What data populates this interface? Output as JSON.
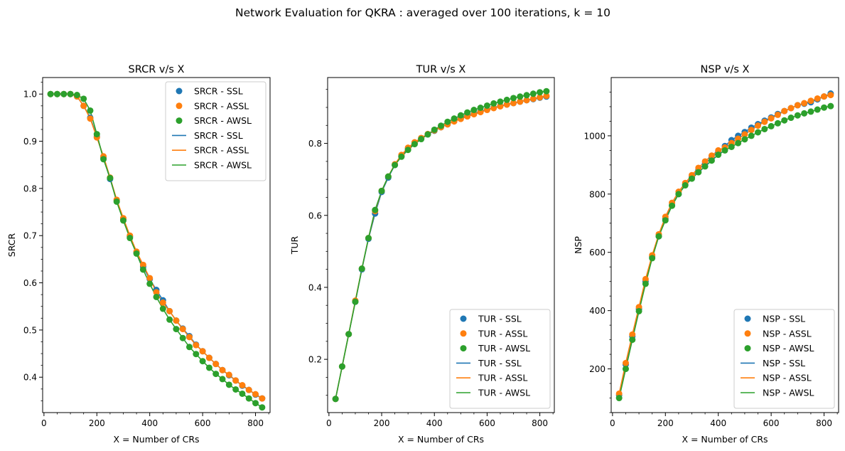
{
  "figure": {
    "suptitle": "Network Evaluation for QKRA : averaged over 100 iterations, k = 10"
  },
  "colors": {
    "SSL": "#1f77b4",
    "ASSL": "#ff7f0e",
    "AWSL": "#2ca02c"
  },
  "chart_data": [
    {
      "type": "scatter",
      "title": "SRCR v/s X",
      "xlabel": "X = Number of CRs",
      "ylabel": "SRCR",
      "xlim": [
        -5,
        855
      ],
      "ylim": [
        0.325,
        1.035
      ],
      "xticks": [
        0,
        200,
        400,
        600,
        800
      ],
      "yticks": [
        0.4,
        0.5,
        0.6,
        0.7,
        0.8,
        0.9,
        1.0
      ],
      "ytick_labels": [
        "0.4",
        "0.5",
        "0.6",
        "0.7",
        "0.8",
        "0.9",
        "1.0"
      ],
      "legend_position": "top-right",
      "legend": [
        "SRCR - SSL",
        "SRCR - ASSL",
        "SRCR - AWSL",
        "SRCR - SSL",
        "SRCR - ASSL",
        "SRCR - AWSL"
      ],
      "x": [
        25,
        50,
        75,
        100,
        125,
        150,
        175,
        200,
        225,
        250,
        275,
        300,
        325,
        350,
        375,
        400,
        425,
        450,
        475,
        500,
        525,
        550,
        575,
        600,
        625,
        650,
        675,
        700,
        725,
        750,
        775,
        800,
        825
      ],
      "series": [
        {
          "name": "SRCR - SSL",
          "key": "SSL",
          "values": [
            1.0,
            1.0,
            1.0,
            1.0,
            0.995,
            0.975,
            0.95,
            0.91,
            0.865,
            0.82,
            0.775,
            0.735,
            0.698,
            0.664,
            0.634,
            0.608,
            0.585,
            0.563,
            0.54,
            0.52,
            0.503,
            0.487,
            0.469,
            0.455,
            0.441,
            0.428,
            0.415,
            0.404,
            0.393,
            0.382,
            0.373,
            0.363,
            0.355
          ]
        },
        {
          "name": "SRCR - ASSL",
          "key": "ASSL",
          "values": [
            1.0,
            1.0,
            1.0,
            1.0,
            0.995,
            0.975,
            0.948,
            0.908,
            0.868,
            0.823,
            0.776,
            0.737,
            0.7,
            0.666,
            0.638,
            0.61,
            0.58,
            0.558,
            0.54,
            0.52,
            0.502,
            0.485,
            0.468,
            0.455,
            0.441,
            0.428,
            0.415,
            0.405,
            0.393,
            0.383,
            0.373,
            0.364,
            0.355
          ]
        },
        {
          "name": "SRCR - AWSL",
          "key": "AWSL",
          "values": [
            1.0,
            1.0,
            1.0,
            1.0,
            0.998,
            0.99,
            0.965,
            0.915,
            0.862,
            0.822,
            0.772,
            0.732,
            0.695,
            0.662,
            0.628,
            0.598,
            0.57,
            0.545,
            0.522,
            0.502,
            0.483,
            0.464,
            0.449,
            0.434,
            0.42,
            0.407,
            0.396,
            0.384,
            0.374,
            0.365,
            0.355,
            0.345,
            0.336
          ]
        }
      ]
    },
    {
      "type": "scatter",
      "title": "TUR v/s X",
      "xlabel": "X = Number of CRs",
      "ylabel": "TUR",
      "xlim": [
        -5,
        855
      ],
      "ylim": [
        0.052,
        0.983
      ],
      "xticks": [
        0,
        200,
        400,
        600,
        800
      ],
      "yticks": [
        0.2,
        0.4,
        0.6,
        0.8
      ],
      "ytick_labels": [
        "0.2",
        "0.4",
        "0.6",
        "0.8"
      ],
      "legend_position": "lower-right",
      "legend": [
        "TUR - SSL",
        "TUR - ASSL",
        "TUR - AWSL",
        "TUR - SSL",
        "TUR - ASSL",
        "TUR - AWSL"
      ],
      "x": [
        25,
        50,
        75,
        100,
        125,
        150,
        175,
        200,
        225,
        250,
        275,
        300,
        325,
        350,
        375,
        400,
        425,
        450,
        475,
        500,
        525,
        550,
        575,
        600,
        625,
        650,
        675,
        700,
        725,
        750,
        775,
        800,
        825
      ],
      "series": [
        {
          "name": "TUR - SSL",
          "key": "SSL",
          "values": [
            0.09,
            0.18,
            0.27,
            0.36,
            0.45,
            0.535,
            0.605,
            0.665,
            0.705,
            0.74,
            0.765,
            0.785,
            0.8,
            0.813,
            0.825,
            0.835,
            0.845,
            0.853,
            0.862,
            0.87,
            0.877,
            0.883,
            0.889,
            0.894,
            0.899,
            0.904,
            0.908,
            0.912,
            0.916,
            0.92,
            0.923,
            0.927,
            0.93
          ]
        },
        {
          "name": "TUR - ASSL",
          "key": "ASSL",
          "values": [
            0.09,
            0.18,
            0.27,
            0.363,
            0.452,
            0.537,
            0.612,
            0.668,
            0.708,
            0.742,
            0.768,
            0.788,
            0.803,
            0.815,
            0.826,
            0.836,
            0.845,
            0.853,
            0.861,
            0.868,
            0.875,
            0.881,
            0.887,
            0.893,
            0.898,
            0.903,
            0.908,
            0.912,
            0.916,
            0.92,
            0.924,
            0.928,
            0.932
          ]
        },
        {
          "name": "TUR - AWSL",
          "key": "AWSL",
          "values": [
            0.09,
            0.18,
            0.27,
            0.36,
            0.452,
            0.537,
            0.615,
            0.668,
            0.708,
            0.74,
            0.763,
            0.782,
            0.798,
            0.812,
            0.825,
            0.838,
            0.849,
            0.86,
            0.869,
            0.878,
            0.886,
            0.893,
            0.899,
            0.905,
            0.911,
            0.916,
            0.921,
            0.926,
            0.93,
            0.934,
            0.938,
            0.942,
            0.945
          ]
        }
      ]
    },
    {
      "type": "scatter",
      "title": "NSP v/s X",
      "xlabel": "X = Number of CRs",
      "ylabel": "NSP",
      "xlim": [
        -5,
        855
      ],
      "ylim": [
        50,
        1200
      ],
      "xticks": [
        0,
        200,
        400,
        600,
        800
      ],
      "yticks": [
        200,
        400,
        600,
        800,
        1000
      ],
      "ytick_labels": [
        "200",
        "400",
        "600",
        "800",
        "1000"
      ],
      "legend_position": "lower-right",
      "legend": [
        "NSP - SSL",
        "NSP - ASSL",
        "NSP - AWSL",
        "NSP - SSL",
        "NSP - ASSL",
        "NSP - AWSL"
      ],
      "x": [
        25,
        50,
        75,
        100,
        125,
        150,
        175,
        200,
        225,
        250,
        275,
        300,
        325,
        350,
        375,
        400,
        425,
        450,
        475,
        500,
        525,
        550,
        575,
        600,
        625,
        650,
        675,
        700,
        725,
        750,
        775,
        800,
        825
      ],
      "series": [
        {
          "name": "NSP - SSL",
          "key": "SSL",
          "values": [
            110,
            215,
            312,
            405,
            500,
            585,
            655,
            715,
            762,
            800,
            832,
            858,
            883,
            905,
            925,
            945,
            965,
            985,
            1000,
            1013,
            1028,
            1040,
            1052,
            1063,
            1075,
            1085,
            1095,
            1105,
            1110,
            1115,
            1125,
            1135,
            1145
          ]
        },
        {
          "name": "NSP - ASSL",
          "key": "ASSL",
          "values": [
            115,
            220,
            318,
            412,
            508,
            590,
            662,
            722,
            770,
            808,
            838,
            865,
            890,
            912,
            932,
            950,
            960,
            975,
            990,
            1005,
            1020,
            1035,
            1048,
            1060,
            1072,
            1085,
            1095,
            1105,
            1112,
            1120,
            1128,
            1135,
            1140
          ]
        },
        {
          "name": "NSP - AWSL",
          "key": "AWSL",
          "values": [
            100,
            200,
            300,
            398,
            492,
            580,
            655,
            710,
            760,
            800,
            830,
            853,
            875,
            895,
            915,
            935,
            950,
            962,
            975,
            988,
            1000,
            1012,
            1023,
            1033,
            1043,
            1053,
            1062,
            1070,
            1077,
            1083,
            1090,
            1097,
            1102
          ]
        }
      ]
    }
  ]
}
